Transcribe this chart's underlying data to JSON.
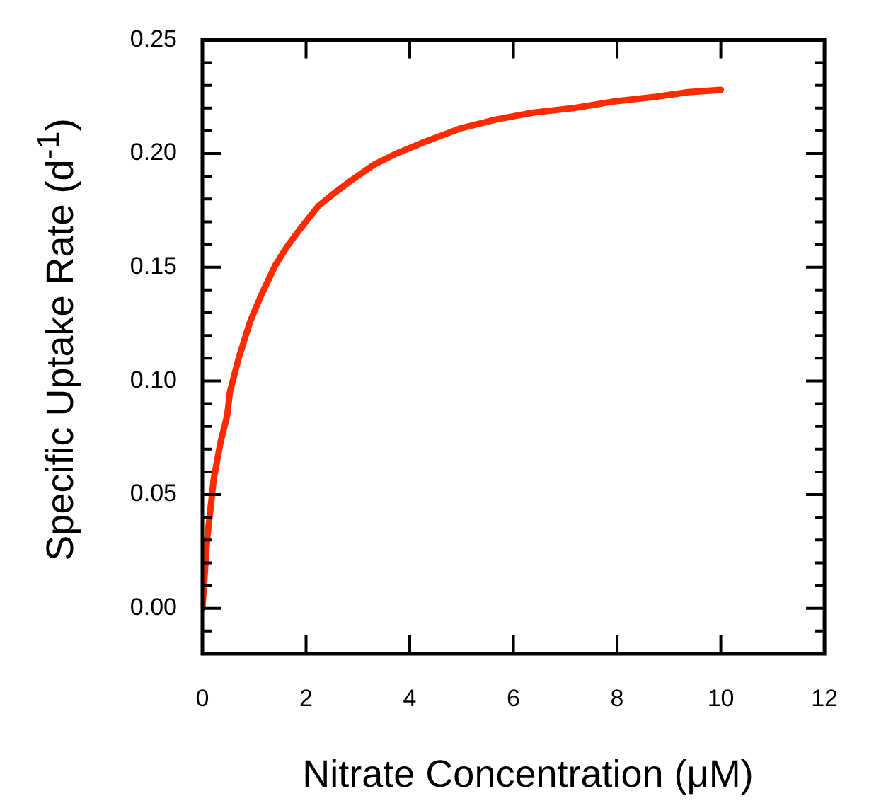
{
  "chart_data": {
    "type": "line",
    "xlabel": "Nitrate Concentration (μM)",
    "ylabel": "Specific Uptake Rate (d$^{-1}$)",
    "x": [
      0,
      0.09,
      0.22,
      0.35,
      0.48,
      0.53,
      0.7,
      0.92,
      1.14,
      1.41,
      1.63,
      1.89,
      2.24,
      2.51,
      2.86,
      3.3,
      3.74,
      4.27,
      4.97,
      5.67,
      6.38,
      7.17,
      7.96,
      8.75,
      9.37,
      10
    ],
    "series": [
      {
        "color": "#ff2a00",
        "values": [
          0,
          0.03,
          0.057,
          0.073,
          0.085,
          0.095,
          0.11,
          0.126,
          0.138,
          0.151,
          0.159,
          0.167,
          0.177,
          0.182,
          0.188,
          0.195,
          0.2,
          0.205,
          0.211,
          0.215,
          0.218,
          0.22,
          0.223,
          0.225,
          0.227,
          0.228
        ]
      }
    ],
    "xlim": [
      0,
      12
    ],
    "xticks": [
      0,
      2,
      4,
      6,
      8,
      10,
      12
    ],
    "ylim": [
      -0.02,
      0.25
    ],
    "yticks": [
      {
        "value": -0.01,
        "label": null
      },
      {
        "value": 0,
        "label": "0.00"
      },
      {
        "value": 0.01,
        "label": null
      },
      {
        "value": 0.02,
        "label": null
      },
      {
        "value": 0.03,
        "label": null
      },
      {
        "value": 0.04,
        "label": null
      },
      {
        "value": 0.05,
        "label": "0.05"
      },
      {
        "value": 0.06,
        "label": null
      },
      {
        "value": 0.07,
        "label": null
      },
      {
        "value": 0.08,
        "label": null
      },
      {
        "value": 0.09,
        "label": null
      },
      {
        "value": 0.1,
        "label": "0.10"
      },
      {
        "value": 0.11,
        "label": null
      },
      {
        "value": 0.12,
        "label": null
      },
      {
        "value": 0.13,
        "label": null
      },
      {
        "value": 0.14,
        "label": null
      },
      {
        "value": 0.15,
        "label": "0.15"
      },
      {
        "value": 0.16,
        "label": null
      },
      {
        "value": 0.17,
        "label": null
      },
      {
        "value": 0.18,
        "label": null
      },
      {
        "value": 0.19,
        "label": null
      },
      {
        "value": 0.2,
        "label": "0.20"
      },
      {
        "value": 0.21,
        "label": null
      },
      {
        "value": 0.22,
        "label": null
      },
      {
        "value": 0.23,
        "label": null
      },
      {
        "value": 0.24,
        "label": null
      },
      {
        "value": 0.25,
        "label": "0.25"
      }
    ],
    "marker": "none",
    "line_style": "solid",
    "legend": false
  }
}
